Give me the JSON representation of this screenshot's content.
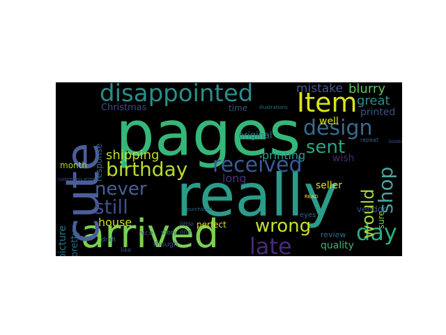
{
  "figure": {
    "type": "wordcloud",
    "background": "#000000",
    "words": [
      {
        "text": "pages",
        "color": "#35b779"
      },
      {
        "text": "really",
        "color": "#2a9c89"
      },
      {
        "text": "arrived",
        "color": "#7ad151"
      },
      {
        "text": "cute",
        "color": "#4b5e9b"
      },
      {
        "text": "disappointed",
        "color": "#2d8c8c"
      },
      {
        "text": "Item",
        "color": "#dce319"
      },
      {
        "text": "design",
        "color": "#3a6b8f"
      },
      {
        "text": "received",
        "color": "#3c5a99"
      },
      {
        "text": "birthday",
        "color": "#b5de2b"
      },
      {
        "text": "sent",
        "color": "#2aa784"
      },
      {
        "text": "wrong",
        "color": "#c7e02a"
      },
      {
        "text": "day",
        "color": "#29af7f"
      },
      {
        "text": "late",
        "color": "#472c7a"
      },
      {
        "text": "still",
        "color": "#3d4e8a"
      },
      {
        "text": "never",
        "color": "#4a5f97"
      },
      {
        "text": "shop",
        "color": "#4ba3a0"
      },
      {
        "text": "would",
        "color": "#a5db36"
      },
      {
        "text": "shipping",
        "color": "#c2df23"
      },
      {
        "text": "great",
        "color": "#2b8e8c"
      },
      {
        "text": "mistake",
        "color": "#45598d"
      },
      {
        "text": "blurry",
        "color": "#5fc45e"
      },
      {
        "text": "printing",
        "color": "#2a9c89"
      },
      {
        "text": "Christmas",
        "color": "#3e4d89"
      },
      {
        "text": "house",
        "color": "#c9e21f"
      },
      {
        "text": "quality",
        "color": "#38b977"
      },
      {
        "text": "picture",
        "color": "#2b788e"
      },
      {
        "text": "pretty",
        "color": "#2e6e8e"
      },
      {
        "text": "response",
        "color": "#2d708e"
      },
      {
        "text": "printed",
        "color": "#3b528b"
      },
      {
        "text": "well",
        "color": "#e4e419"
      },
      {
        "text": "original",
        "color": "#2a788e"
      },
      {
        "text": "seller",
        "color": "#dde318"
      },
      {
        "text": "perfect",
        "color": "#dce319"
      },
      {
        "text": "long",
        "color": "#46327e"
      },
      {
        "text": "time",
        "color": "#3b528b"
      },
      {
        "text": "wish",
        "color": "#482878"
      },
      {
        "text": "month",
        "color": "#a8db34"
      },
      {
        "text": "vendor",
        "color": "#3b528b"
      },
      {
        "text": "sure",
        "color": "#7ad151"
      },
      {
        "text": "review",
        "color": "#2c728e"
      },
      {
        "text": "eyes",
        "color": "#31688e"
      },
      {
        "text": "little",
        "color": "#3b528b"
      },
      {
        "text": "one",
        "color": "#31688e"
      },
      {
        "text": "nice",
        "color": "#3e4989"
      },
      {
        "text": "story",
        "color": "#2a788e"
      },
      {
        "text": "though",
        "color": "#3b528b"
      },
      {
        "text": "draft",
        "color": "#2c728e"
      },
      {
        "text": "like",
        "color": "#404688"
      },
      {
        "text": "illustrations",
        "color": "#2c728e"
      },
      {
        "text": "communication",
        "color": "#3e4a89"
      },
      {
        "text": "purchased",
        "color": "#31688e"
      },
      {
        "text": "repeat",
        "color": "#35608d"
      },
      {
        "text": "books",
        "color": "#3b528b"
      },
      {
        "text": "READ",
        "color": "#fde725"
      }
    ]
  }
}
